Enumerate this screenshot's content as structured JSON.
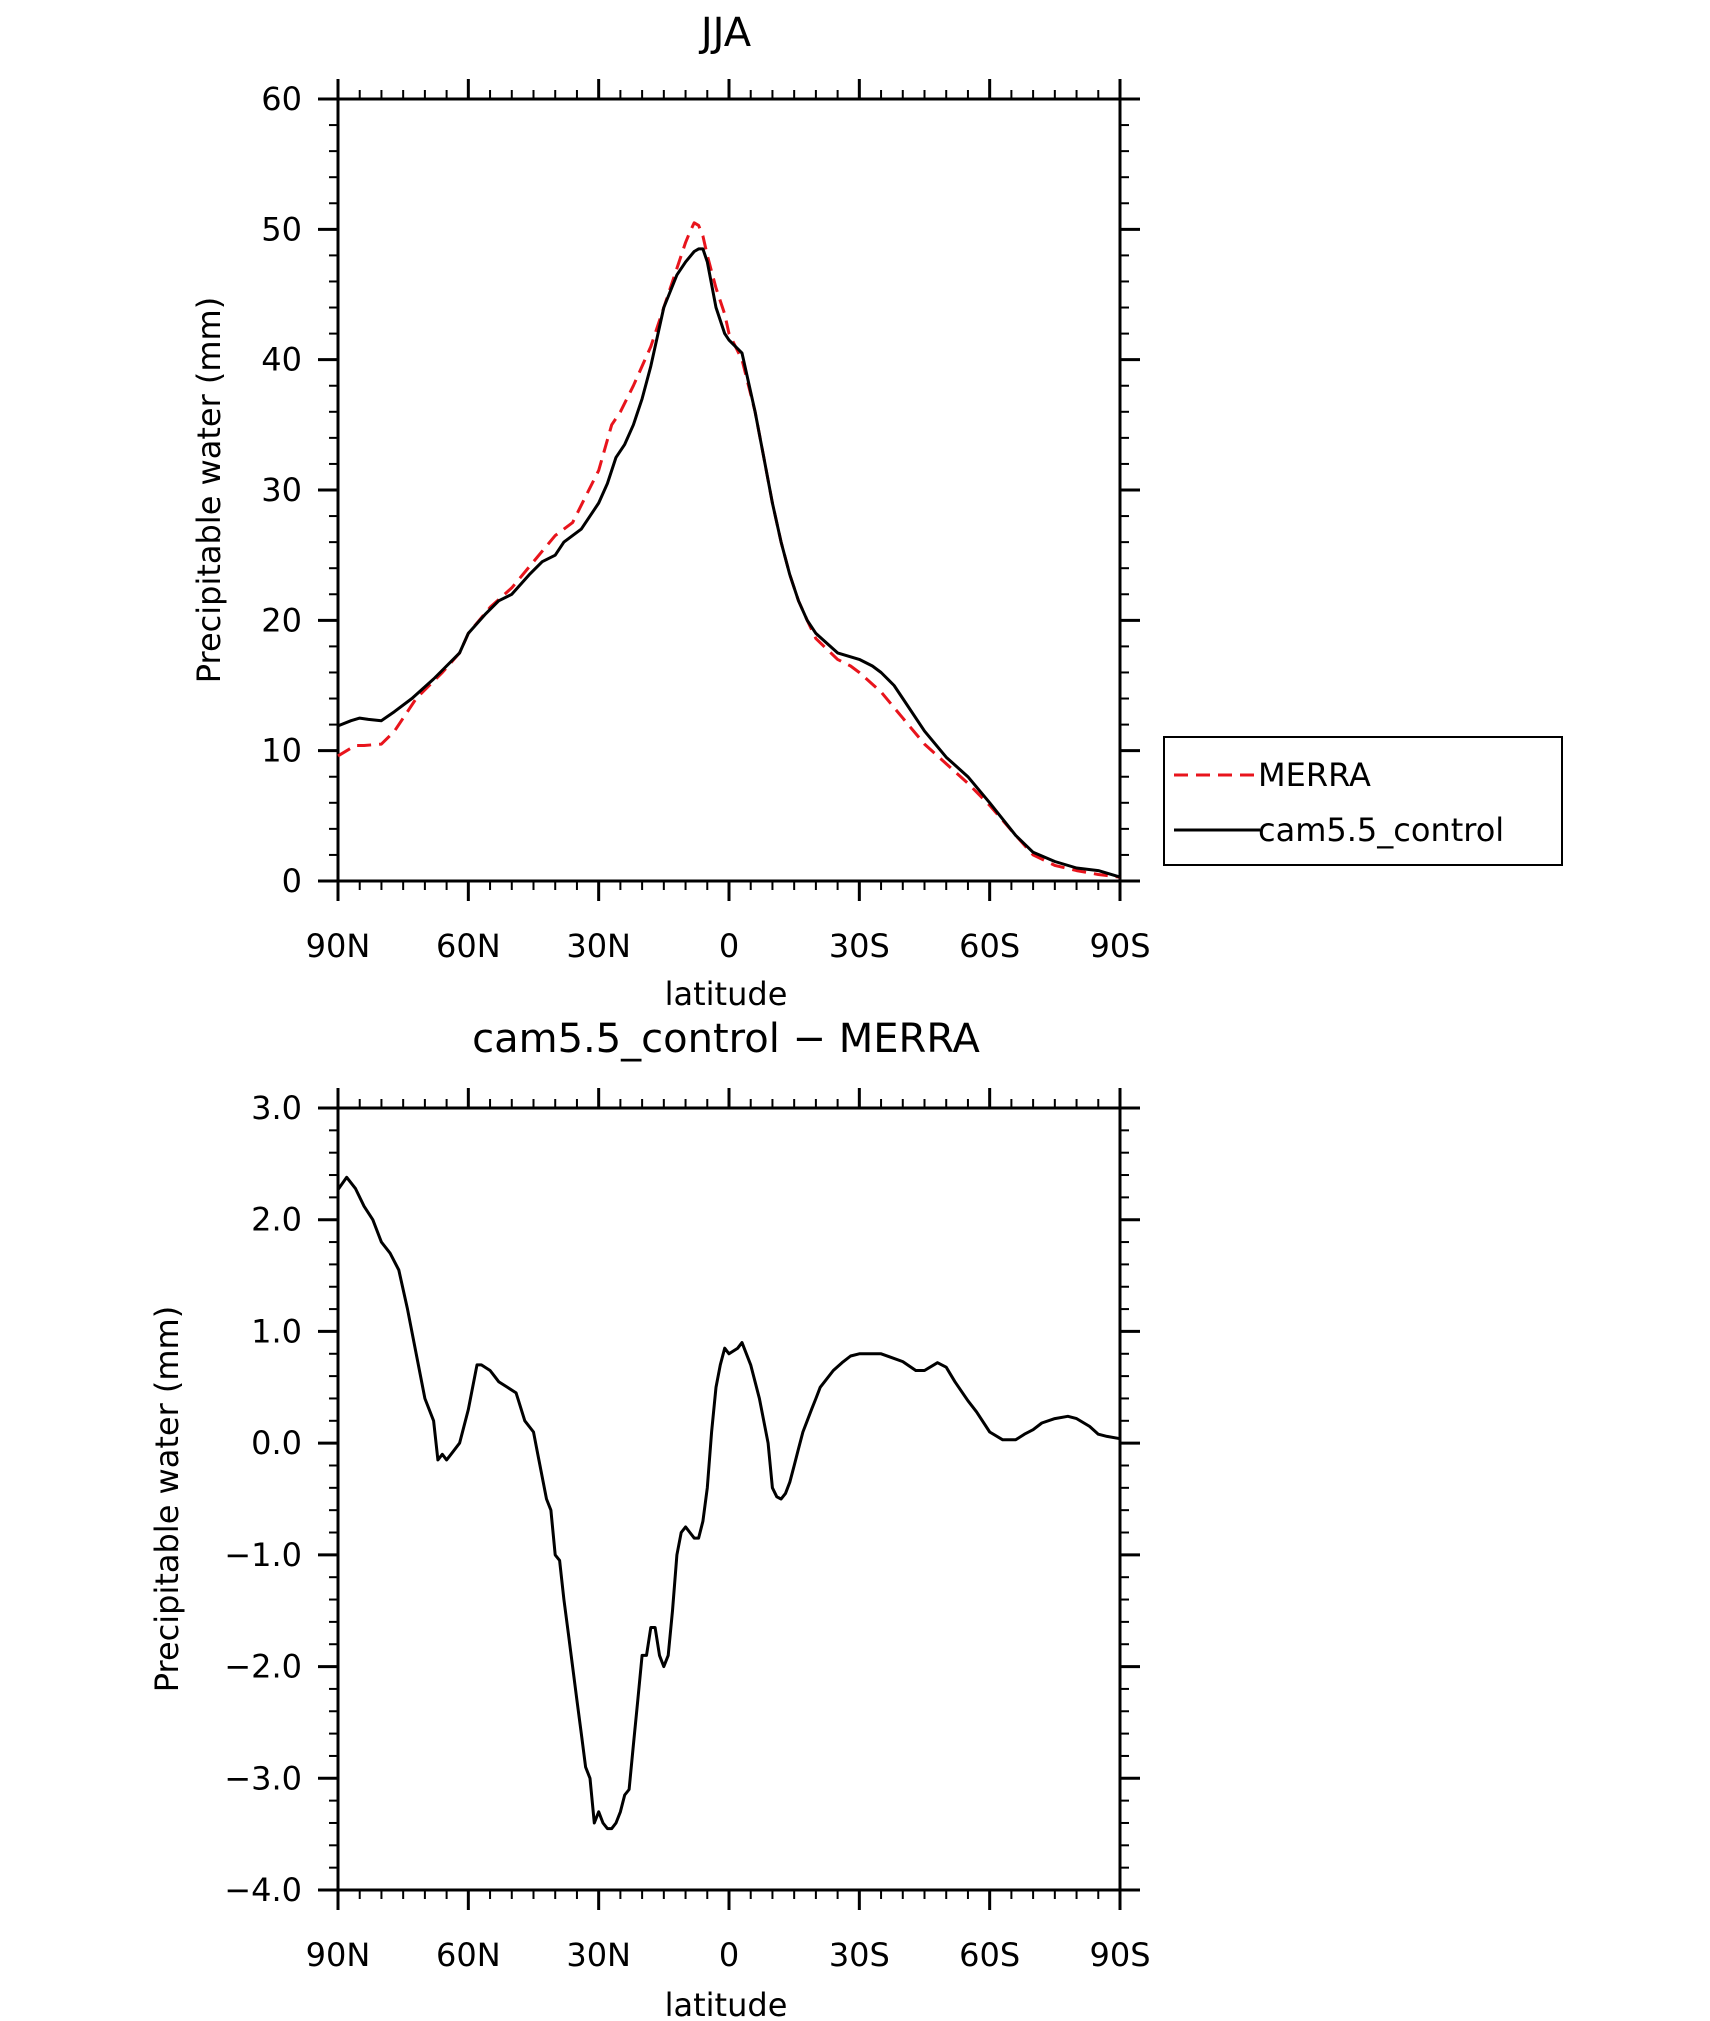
{
  "chart_data": [
    {
      "type": "line",
      "title": "JJA",
      "xlabel": "latitude",
      "ylabel": "Precipitable water (mm)",
      "xlim": [
        90,
        -90
      ],
      "ylim": [
        0,
        60
      ],
      "x_ticks": [
        90,
        60,
        30,
        0,
        -30,
        -60,
        -90
      ],
      "x_tick_labels": [
        "90N",
        "60N",
        "30N",
        "0",
        "30S",
        "60S",
        "90S"
      ],
      "y_ticks": [
        0,
        10,
        20,
        30,
        40,
        50,
        60
      ],
      "y_tick_labels": [
        "0",
        "10",
        "20",
        "30",
        "40",
        "50",
        "60"
      ],
      "legend_position": "right",
      "grid": false,
      "series": [
        {
          "name": "MERRA",
          "color": "#e8141c",
          "dash": "dashed",
          "x": [
            90,
            86,
            84,
            80,
            77,
            72,
            66,
            62,
            60,
            55,
            50,
            45,
            40,
            36,
            33,
            30,
            27,
            25,
            22,
            18,
            15,
            12,
            10,
            9,
            8,
            7,
            6,
            5,
            3,
            1,
            0,
            -3,
            -6,
            -8,
            -10,
            -12,
            -14,
            -16,
            -18,
            -20,
            -25,
            -28,
            -30,
            -35,
            -40,
            -45,
            -50,
            -55,
            -60,
            -66,
            -70,
            -75,
            -80,
            -85,
            -90
          ],
          "y": [
            9.6,
            10.4,
            10.4,
            10.5,
            11.5,
            14.0,
            16.0,
            17.5,
            19.0,
            21.0,
            22.5,
            24.5,
            26.5,
            27.5,
            29.5,
            31.5,
            35.0,
            36.0,
            38.0,
            41.0,
            44.0,
            47.0,
            49.0,
            49.8,
            50.5,
            50.3,
            49.5,
            48.0,
            45.5,
            43.5,
            42.0,
            40.0,
            36.0,
            32.5,
            29.0,
            26.0,
            23.5,
            21.5,
            20.0,
            18.6,
            17.0,
            16.5,
            16.0,
            14.5,
            12.5,
            10.5,
            9.0,
            7.5,
            5.8,
            3.5,
            2.0,
            1.2,
            0.8,
            0.5,
            0.3
          ]
        },
        {
          "name": "cam5.5_control",
          "color": "#000000",
          "dash": "solid",
          "x": [
            90,
            87,
            85,
            83,
            80,
            77,
            73,
            68,
            62,
            60,
            56,
            53,
            50,
            46,
            43,
            40,
            38,
            36,
            34,
            32,
            30,
            28,
            26,
            24,
            22,
            20,
            18,
            15,
            12,
            10,
            8,
            7,
            6,
            5,
            3,
            1,
            0,
            -3,
            -6,
            -8,
            -10,
            -12,
            -14,
            -16,
            -18,
            -20,
            -25,
            -30,
            -33,
            -35,
            -38,
            -40,
            -45,
            -50,
            -55,
            -60,
            -66,
            -70,
            -75,
            -80,
            -85,
            -90
          ],
          "y": [
            11.9,
            12.3,
            12.5,
            12.4,
            12.3,
            13.0,
            14.0,
            15.5,
            17.5,
            19.0,
            20.5,
            21.5,
            22.0,
            23.5,
            24.5,
            25.0,
            26.0,
            26.5,
            27.0,
            28.0,
            29.0,
            30.5,
            32.5,
            33.5,
            35.0,
            37.0,
            39.5,
            44.0,
            46.5,
            47.5,
            48.3,
            48.5,
            48.5,
            47.5,
            44.0,
            42.0,
            41.5,
            40.5,
            36.0,
            32.5,
            29.0,
            26.0,
            23.5,
            21.5,
            20.0,
            19.0,
            17.5,
            17.0,
            16.5,
            16.0,
            15.0,
            14.0,
            11.5,
            9.5,
            8.0,
            6.0,
            3.5,
            2.2,
            1.5,
            1.0,
            0.8,
            0.3
          ]
        }
      ]
    },
    {
      "type": "line",
      "title": "cam5.5_control − MERRA",
      "xlabel": "latitude",
      "ylabel": "Precipitable water (mm)",
      "xlim": [
        90,
        -90
      ],
      "ylim": [
        -4.0,
        3.0
      ],
      "x_ticks": [
        90,
        60,
        30,
        0,
        -30,
        -60,
        -90
      ],
      "x_tick_labels": [
        "90N",
        "60N",
        "30N",
        "0",
        "30S",
        "60S",
        "90S"
      ],
      "y_ticks": [
        -4.0,
        -3.0,
        -2.0,
        -1.0,
        0.0,
        1.0,
        2.0,
        3.0
      ],
      "y_tick_labels": [
        "−4.0",
        "−3.0",
        "−2.0",
        "−1.0",
        "0.0",
        "1.0",
        "2.0",
        "3.0"
      ],
      "grid": false,
      "series": [
        {
          "color": "#000000",
          "dash": "solid",
          "x": [
            90,
            88,
            86,
            84,
            82,
            80,
            78,
            76,
            74,
            72,
            70,
            68,
            67,
            66,
            65,
            64,
            62,
            60,
            58,
            57,
            55,
            54,
            53,
            51,
            49,
            47,
            45,
            44,
            42,
            41,
            40,
            39,
            38,
            37,
            36,
            35,
            34,
            33,
            32,
            31,
            30,
            29,
            28,
            27,
            26,
            25,
            24,
            23,
            22,
            21,
            20,
            19,
            18,
            17,
            16,
            15,
            14,
            13,
            12,
            11,
            10,
            9,
            8,
            7,
            6,
            5,
            4,
            3,
            2,
            1,
            0,
            -2,
            -3,
            -5,
            -7,
            -9,
            -10,
            -11,
            -12,
            -13,
            -14,
            -15,
            -16,
            -17,
            -18,
            -19,
            -20,
            -21,
            -22,
            -24,
            -26,
            -28,
            -30,
            -35,
            -40,
            -43,
            -45,
            -48,
            -50,
            -52,
            -55,
            -57,
            -60,
            -63,
            -66,
            -68,
            -70,
            -72,
            -75,
            -78,
            -80,
            -83,
            -85,
            -87,
            -90
          ],
          "y": [
            2.27,
            2.38,
            2.28,
            2.12,
            2.0,
            1.8,
            1.7,
            1.55,
            1.2,
            0.8,
            0.4,
            0.2,
            -0.15,
            -0.1,
            -0.15,
            -0.1,
            0.0,
            0.3,
            0.7,
            0.7,
            0.65,
            0.6,
            0.55,
            0.5,
            0.45,
            0.2,
            0.1,
            -0.1,
            -0.5,
            -0.6,
            -1.0,
            -1.05,
            -1.4,
            -1.7,
            -2.0,
            -2.3,
            -2.6,
            -2.9,
            -3.0,
            -3.4,
            -3.3,
            -3.4,
            -3.45,
            -3.45,
            -3.4,
            -3.3,
            -3.15,
            -3.1,
            -2.7,
            -2.3,
            -1.9,
            -1.9,
            -1.65,
            -1.65,
            -1.9,
            -2.0,
            -1.9,
            -1.5,
            -1.0,
            -0.8,
            -0.75,
            -0.8,
            -0.85,
            -0.85,
            -0.7,
            -0.4,
            0.1,
            0.5,
            0.7,
            0.85,
            0.8,
            0.85,
            0.9,
            0.7,
            0.4,
            0.0,
            -0.4,
            -0.48,
            -0.5,
            -0.45,
            -0.35,
            -0.2,
            -0.05,
            0.1,
            0.2,
            0.3,
            0.4,
            0.5,
            0.55,
            0.65,
            0.72,
            0.78,
            0.8,
            0.8,
            0.73,
            0.65,
            0.65,
            0.72,
            0.68,
            0.55,
            0.38,
            0.28,
            0.1,
            0.03,
            0.03,
            0.08,
            0.12,
            0.18,
            0.22,
            0.24,
            0.22,
            0.15,
            0.08,
            0.06,
            0.04
          ]
        }
      ]
    }
  ]
}
